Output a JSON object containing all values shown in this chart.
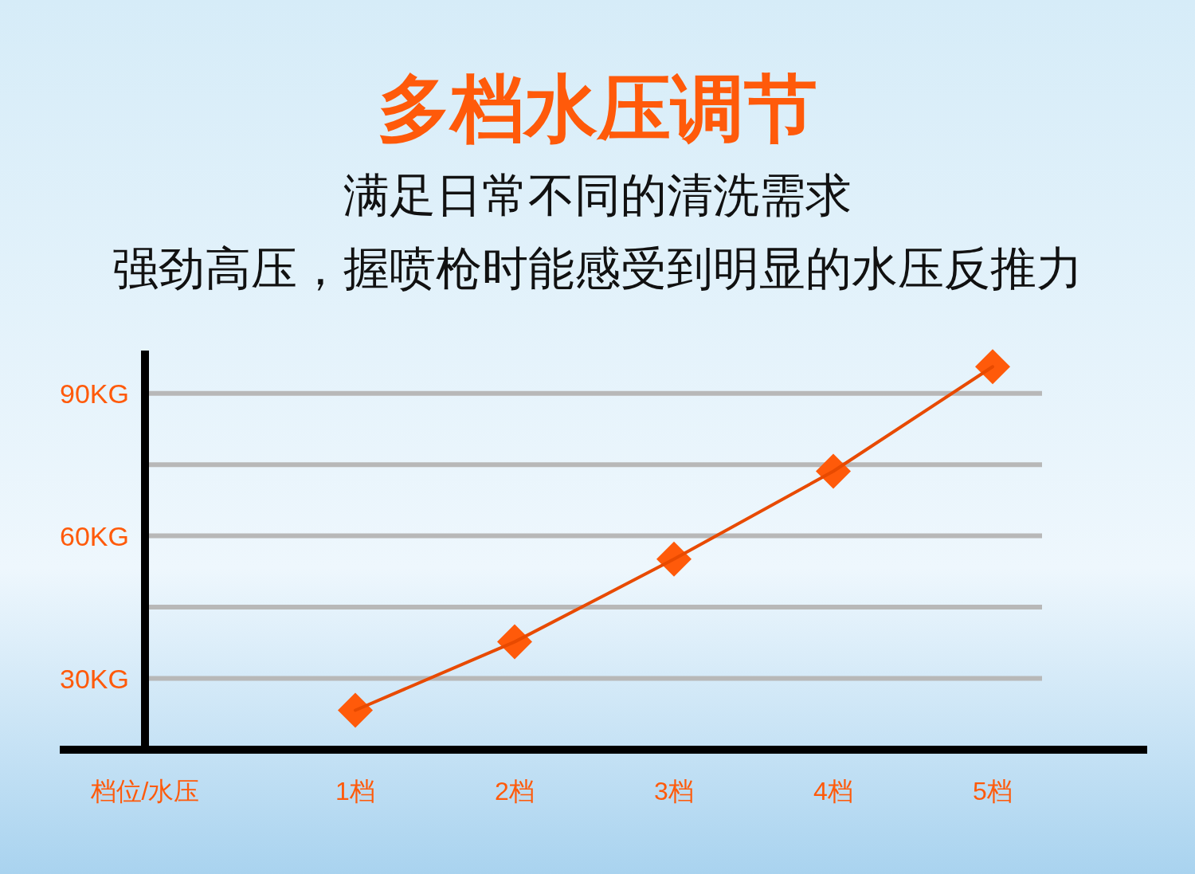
{
  "chart_data": {
    "type": "line",
    "title": "多档水压调节",
    "subtitle": "满足日常不同的清洗需求",
    "annotations": [
      "强劲高压，握喷枪时能感受到明显的水压反推力"
    ],
    "xlabel": "档位/水压",
    "categories": [
      "1档",
      "2档",
      "3档",
      "4档",
      "5档"
    ],
    "series": [
      {
        "color": "#ff5a0a",
        "values": [
          23.3,
          37.7,
          55.1,
          73.6,
          95.6
        ]
      }
    ],
    "ylim": [
      15,
      99
    ],
    "yticks": [
      {
        "value": 30,
        "label": "30KG"
      },
      {
        "value": 45,
        "label": null
      },
      {
        "value": 60,
        "label": "60KG"
      },
      {
        "value": 75,
        "label": null
      },
      {
        "value": 90,
        "label": "90KG"
      }
    ],
    "grid": "y",
    "marker": "diamond",
    "line_style": "solid"
  }
}
